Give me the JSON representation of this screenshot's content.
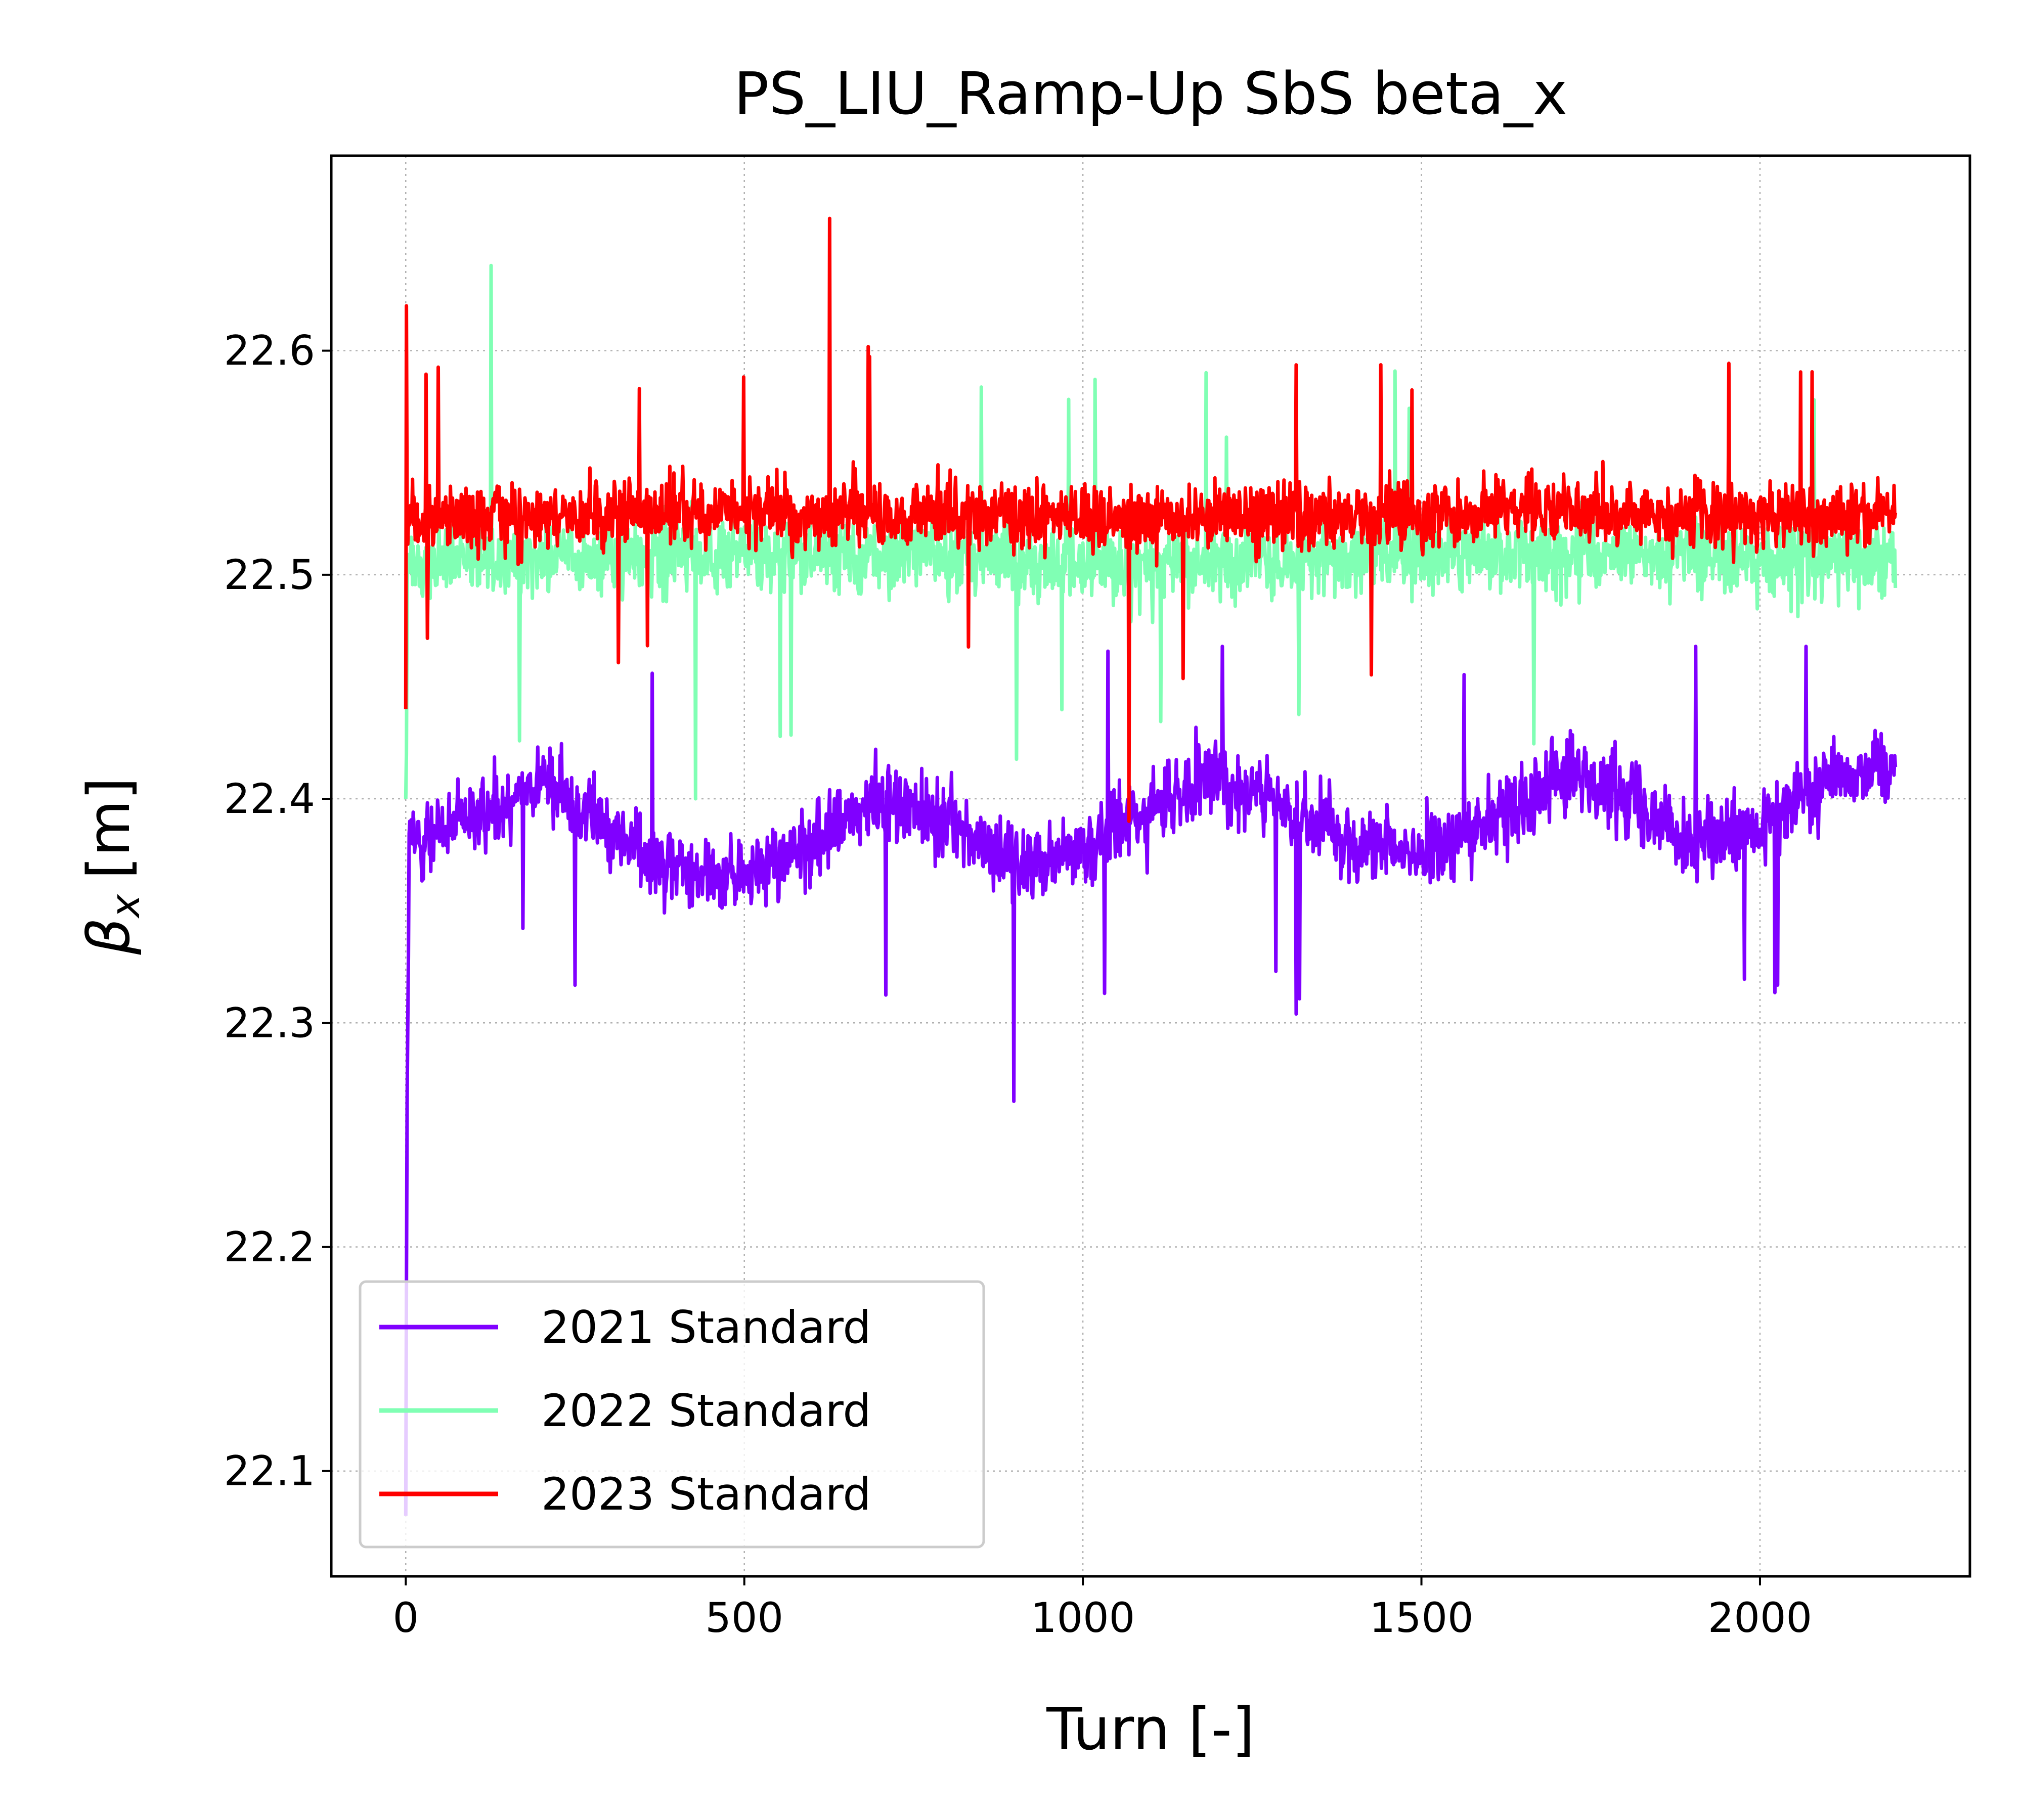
{
  "chart_data": {
    "type": "line",
    "title": "PS_LIU_Ramp-Up SbS beta_x",
    "xlabel": "Turn [-]",
    "ylabel_symbol": "β",
    "ylabel_subscript": "x",
    "ylabel_unit": "[m]",
    "xlim": [
      -110,
      2310
    ],
    "ylim": [
      22.053,
      22.687
    ],
    "xticks": [
      0,
      500,
      1000,
      1500,
      2000
    ],
    "xtick_labels": [
      "0",
      "500",
      "1000",
      "1500",
      "2000"
    ],
    "yticks": [
      22.1,
      22.2,
      22.3,
      22.4,
      22.5,
      22.6
    ],
    "ytick_labels": [
      "22.1",
      "22.2",
      "22.3",
      "22.4",
      "22.5",
      "22.6"
    ],
    "grid": true,
    "legend_position": "lower-left",
    "x_range": [
      0,
      2200
    ],
    "series": [
      {
        "name": "2021 Standard",
        "color": "#8000ff",
        "centers": [
          [
            0,
            22.38
          ],
          [
            50,
            22.385
          ],
          [
            100,
            22.39
          ],
          [
            200,
            22.41
          ],
          [
            300,
            22.385
          ],
          [
            400,
            22.37
          ],
          [
            500,
            22.365
          ],
          [
            600,
            22.38
          ],
          [
            700,
            22.4
          ],
          [
            800,
            22.39
          ],
          [
            900,
            22.37
          ],
          [
            1000,
            22.38
          ],
          [
            1100,
            22.395
          ],
          [
            1200,
            22.41
          ],
          [
            1300,
            22.395
          ],
          [
            1400,
            22.38
          ],
          [
            1500,
            22.375
          ],
          [
            1600,
            22.39
          ],
          [
            1700,
            22.41
          ],
          [
            1800,
            22.405
          ],
          [
            1900,
            22.38
          ],
          [
            2000,
            22.385
          ],
          [
            2100,
            22.41
          ],
          [
            2200,
            22.415
          ]
        ],
        "amplitude": 0.035,
        "spike_min": 22.265,
        "spike_max": 22.468,
        "start_values": [
          22.08,
          22.18,
          22.265,
          22.3,
          22.33
        ]
      },
      {
        "name": "2022 Standard",
        "color": "#80ffb4",
        "centers": [
          [
            0,
            22.505
          ],
          [
            550,
            22.51
          ],
          [
            1100,
            22.505
          ],
          [
            1650,
            22.51
          ],
          [
            2200,
            22.505
          ]
        ],
        "amplitude": 0.035,
        "spike_min": 22.4,
        "spike_max": 22.638,
        "start_values": [
          22.4,
          22.42
        ]
      },
      {
        "name": "2023 Standard",
        "color": "#ff0000",
        "centers": [
          [
            0,
            22.525
          ],
          [
            550,
            22.528
          ],
          [
            1100,
            22.525
          ],
          [
            1650,
            22.528
          ],
          [
            2200,
            22.525
          ]
        ],
        "amplitude": 0.03,
        "spike_min": 22.39,
        "spike_max": 22.659,
        "start_values": [
          22.44,
          22.62
        ]
      }
    ]
  }
}
